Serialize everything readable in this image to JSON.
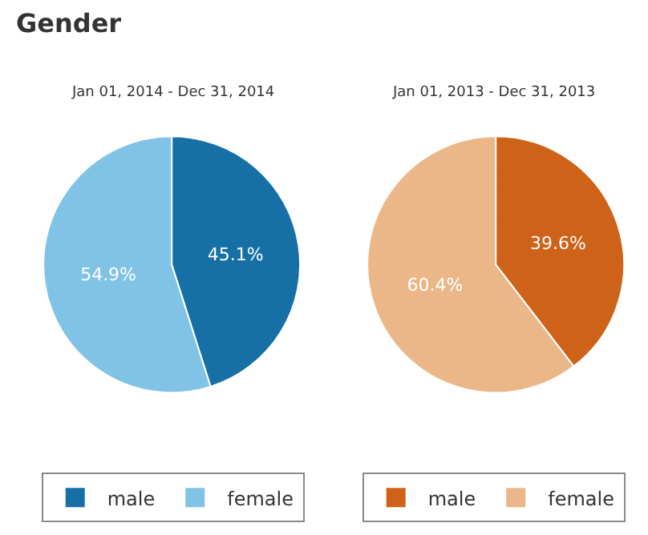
{
  "chart_data": [
    {
      "type": "pie",
      "title": "Gender",
      "subtitle": "Jan 01, 2014 - Dec 31, 2014",
      "categories": [
        "male",
        "female"
      ],
      "values": [
        45.1,
        54.9
      ],
      "value_labels": [
        "45.1%",
        "54.9%"
      ],
      "colors": [
        "#1670a6",
        "#80c3e6"
      ],
      "legend": "bottom"
    },
    {
      "type": "pie",
      "subtitle": "Jan 01, 2013 - Dec 31, 2013",
      "categories": [
        "male",
        "female"
      ],
      "values": [
        39.6,
        60.4
      ],
      "value_labels": [
        "39.6%",
        "60.4%"
      ],
      "colors": [
        "#cf6219",
        "#ebb789"
      ],
      "legend": "bottom"
    }
  ]
}
